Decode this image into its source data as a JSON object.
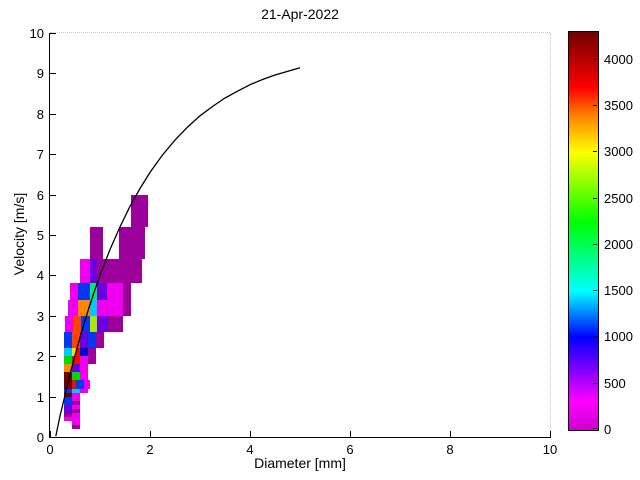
{
  "title": "21-Apr-2022",
  "axes": {
    "xlabel": "Diameter [mm]",
    "ylabel": "Velocity [m/s]",
    "xlim": [
      0,
      10
    ],
    "ylim": [
      0,
      10
    ],
    "xticks": [
      0,
      2,
      4,
      6,
      8,
      10
    ],
    "yticks": [
      0,
      1,
      2,
      3,
      4,
      5,
      6,
      7,
      8,
      9,
      10
    ]
  },
  "colorbar": {
    "min": 0,
    "max": 4300,
    "ticks": [
      0,
      500,
      1000,
      1500,
      2000,
      2500,
      3000,
      3500,
      4000
    ],
    "gradient_stops": [
      {
        "value": 0,
        "color": "#CC00CC"
      },
      {
        "value": 300,
        "color": "#FF00FF"
      },
      {
        "value": 1000,
        "color": "#0000FF"
      },
      {
        "value": 1500,
        "color": "#00FFFF"
      },
      {
        "value": 2250,
        "color": "#00FF00"
      },
      {
        "value": 3000,
        "color": "#FFFF00"
      },
      {
        "value": 3400,
        "color": "#FF8000"
      },
      {
        "value": 3700,
        "color": "#FF0000"
      },
      {
        "value": 4300,
        "color": "#700000"
      }
    ]
  },
  "chart_data": {
    "type": "heatmap",
    "title": "21-Apr-2022",
    "xlabel": "Diameter [mm]",
    "ylabel": "Velocity [m/s]",
    "xlim": [
      0,
      10
    ],
    "ylim": [
      0,
      10
    ],
    "grid": false,
    "legend": "colorbar 0-4300 counts",
    "cells": [
      {
        "d0": 1.625,
        "d1": 1.95,
        "v0": 5.2,
        "v1": 6.0,
        "count": 450,
        "color": "#9B009B"
      },
      {
        "d0": 0.8,
        "d1": 1.0625,
        "v0": 4.4,
        "v1": 5.2,
        "count": 480,
        "color": "#9B009B"
      },
      {
        "d0": 1.375,
        "d1": 1.9,
        "v0": 4.4,
        "v1": 5.2,
        "count": 440,
        "color": "#9B009B"
      },
      {
        "d0": 0.6,
        "d1": 0.8,
        "v0": 3.8,
        "v1": 4.4,
        "count": 220,
        "color": "#EE00EE"
      },
      {
        "d0": 0.8,
        "d1": 0.9375,
        "v0": 3.8,
        "v1": 4.4,
        "count": 700,
        "color": "#6A00E0"
      },
      {
        "d0": 0.9375,
        "d1": 1.34,
        "v0": 3.8,
        "v1": 4.4,
        "count": 450,
        "color": "#9B009B"
      },
      {
        "d0": 1.34,
        "d1": 1.84,
        "v0": 3.8,
        "v1": 4.4,
        "count": 430,
        "color": "#9B009B"
      },
      {
        "d0": 0.4,
        "d1": 0.5625,
        "v0": 3.4,
        "v1": 3.8,
        "count": 200,
        "color": "#EE00EE"
      },
      {
        "d0": 0.5625,
        "d1": 0.8,
        "v0": 3.4,
        "v1": 3.8,
        "count": 1050,
        "color": "#0837F0"
      },
      {
        "d0": 0.8,
        "d1": 0.9375,
        "v0": 3.4,
        "v1": 3.8,
        "count": 1900,
        "color": "#00E878"
      },
      {
        "d0": 0.9375,
        "d1": 1.14,
        "v0": 3.4,
        "v1": 3.8,
        "count": 680,
        "color": "#6A00E0"
      },
      {
        "d0": 1.14,
        "d1": 1.46,
        "v0": 3.4,
        "v1": 3.8,
        "count": 260,
        "color": "#EE00EE"
      },
      {
        "d0": 1.46,
        "d1": 1.625,
        "v0": 3.4,
        "v1": 3.8,
        "count": 430,
        "color": "#9B009B"
      },
      {
        "d0": 0.36,
        "d1": 0.5625,
        "v0": 3.0,
        "v1": 3.4,
        "count": 270,
        "color": "#EE00EE"
      },
      {
        "d0": 0.5625,
        "d1": 0.8,
        "v0": 3.0,
        "v1": 3.4,
        "count": 3250,
        "color": "#FF8800"
      },
      {
        "d0": 0.8,
        "d1": 0.9375,
        "v0": 3.0,
        "v1": 3.4,
        "count": 1500,
        "color": "#00C8F8"
      },
      {
        "d0": 0.9375,
        "d1": 1.14,
        "v0": 3.0,
        "v1": 3.4,
        "count": 320,
        "color": "#EE00EE"
      },
      {
        "d0": 1.14,
        "d1": 1.46,
        "v0": 3.0,
        "v1": 3.4,
        "count": 230,
        "color": "#EE00EE"
      },
      {
        "d0": 1.46,
        "d1": 1.625,
        "v0": 3.0,
        "v1": 3.4,
        "count": 410,
        "color": "#9B009B"
      },
      {
        "d0": 0.3,
        "d1": 0.46,
        "v0": 2.6,
        "v1": 3.0,
        "count": 260,
        "color": "#EE00EE"
      },
      {
        "d0": 0.46,
        "d1": 0.625,
        "v0": 2.6,
        "v1": 3.0,
        "count": 3450,
        "color": "#FF4400"
      },
      {
        "d0": 0.625,
        "d1": 0.8,
        "v0": 2.6,
        "v1": 3.0,
        "count": 1000,
        "color": "#0837F0"
      },
      {
        "d0": 0.8,
        "d1": 0.9375,
        "v0": 2.6,
        "v1": 3.0,
        "count": 2800,
        "color": "#A8E800"
      },
      {
        "d0": 0.9375,
        "d1": 1.16,
        "v0": 2.6,
        "v1": 3.0,
        "count": 620,
        "color": "#6A00E0"
      },
      {
        "d0": 1.16,
        "d1": 1.46,
        "v0": 2.6,
        "v1": 3.0,
        "count": 420,
        "color": "#9B009B"
      },
      {
        "d0": 0.28,
        "d1": 0.44,
        "v0": 2.2,
        "v1": 2.6,
        "count": 1100,
        "color": "#0837F0"
      },
      {
        "d0": 0.44,
        "d1": 0.6,
        "v0": 2.2,
        "v1": 2.6,
        "count": 3400,
        "color": "#FF4400"
      },
      {
        "d0": 0.6,
        "d1": 0.76,
        "v0": 2.2,
        "v1": 2.6,
        "count": 720,
        "color": "#6A00E0"
      },
      {
        "d0": 0.76,
        "d1": 0.92,
        "v0": 2.2,
        "v1": 2.6,
        "count": 1000,
        "color": "#0837F0"
      },
      {
        "d0": 0.92,
        "d1": 1.08,
        "v0": 2.2,
        "v1": 2.6,
        "count": 440,
        "color": "#9B009B"
      },
      {
        "d0": 0.28,
        "d1": 0.44,
        "v0": 2.0,
        "v1": 2.2,
        "count": 1550,
        "color": "#00C8F8"
      },
      {
        "d0": 0.44,
        "d1": 0.52,
        "v0": 2.0,
        "v1": 2.2,
        "count": 3000,
        "color": "#E8E800"
      },
      {
        "d0": 0.52,
        "d1": 0.6,
        "v0": 2.0,
        "v1": 2.2,
        "count": 3650,
        "color": "#E81000"
      },
      {
        "d0": 0.6,
        "d1": 0.76,
        "v0": 2.0,
        "v1": 2.2,
        "count": 900,
        "color": "#0000D0"
      },
      {
        "d0": 0.76,
        "d1": 0.92,
        "v0": 2.0,
        "v1": 2.2,
        "count": 450,
        "color": "#9B009B"
      },
      {
        "d0": 0.28,
        "d1": 0.44,
        "v0": 1.8,
        "v1": 2.0,
        "count": 2300,
        "color": "#00D800"
      },
      {
        "d0": 0.44,
        "d1": 0.6,
        "v0": 1.8,
        "v1": 2.0,
        "count": 3600,
        "color": "#E81000"
      },
      {
        "d0": 0.6,
        "d1": 0.76,
        "v0": 1.8,
        "v1": 2.0,
        "count": 300,
        "color": "#EE00EE"
      },
      {
        "d0": 0.76,
        "d1": 0.92,
        "v0": 1.8,
        "v1": 2.0,
        "count": 430,
        "color": "#9B009B"
      },
      {
        "d0": 0.28,
        "d1": 0.44,
        "v0": 1.6,
        "v1": 1.8,
        "count": 3250,
        "color": "#FF8800"
      },
      {
        "d0": 0.44,
        "d1": 0.6,
        "v0": 1.6,
        "v1": 1.8,
        "count": 700,
        "color": "#6A00E0"
      },
      {
        "d0": 0.6,
        "d1": 0.76,
        "v0": 1.6,
        "v1": 1.8,
        "count": 260,
        "color": "#EE00EE"
      },
      {
        "d0": 0.28,
        "d1": 0.44,
        "v0": 1.4,
        "v1": 1.6,
        "count": 4200,
        "color": "#700000"
      },
      {
        "d0": 0.44,
        "d1": 0.6,
        "v0": 1.4,
        "v1": 1.6,
        "count": 2300,
        "color": "#00D800"
      },
      {
        "d0": 0.6,
        "d1": 0.76,
        "v0": 1.4,
        "v1": 1.6,
        "count": 280,
        "color": "#EE00EE"
      },
      {
        "d0": 0.28,
        "d1": 0.44,
        "v0": 1.2,
        "v1": 1.4,
        "count": 4100,
        "color": "#700000"
      },
      {
        "d0": 0.44,
        "d1": 0.52,
        "v0": 1.2,
        "v1": 1.4,
        "count": 3600,
        "color": "#E81000"
      },
      {
        "d0": 0.52,
        "d1": 0.68,
        "v0": 1.2,
        "v1": 1.4,
        "count": 1000,
        "color": "#0837F0"
      },
      {
        "d0": 0.68,
        "d1": 0.8,
        "v0": 1.2,
        "v1": 1.4,
        "count": 300,
        "color": "#EE00EE"
      },
      {
        "d0": 0.28,
        "d1": 0.44,
        "v0": 1.1,
        "v1": 1.2,
        "count": 1050,
        "color": "#0837F0"
      },
      {
        "d0": 0.44,
        "d1": 0.6,
        "v0": 1.1,
        "v1": 1.2,
        "count": 1500,
        "color": "#00C8F8"
      },
      {
        "d0": 0.6,
        "d1": 0.76,
        "v0": 1.1,
        "v1": 1.2,
        "count": 250,
        "color": "#EE00EE"
      },
      {
        "d0": 0.28,
        "d1": 0.44,
        "v0": 1.0,
        "v1": 1.1,
        "count": 4000,
        "color": "#700000"
      },
      {
        "d0": 0.44,
        "d1": 0.6,
        "v0": 1.0,
        "v1": 1.1,
        "count": 350,
        "color": "#EE00EE"
      },
      {
        "d0": 0.28,
        "d1": 0.44,
        "v0": 0.9,
        "v1": 1.0,
        "count": 950,
        "color": "#0837F0"
      },
      {
        "d0": 0.44,
        "d1": 0.6,
        "v0": 0.9,
        "v1": 1.0,
        "count": 320,
        "color": "#EE00EE"
      },
      {
        "d0": 0.28,
        "d1": 0.44,
        "v0": 0.8,
        "v1": 0.9,
        "count": 900,
        "color": "#0837F0"
      },
      {
        "d0": 0.44,
        "d1": 0.6,
        "v0": 0.8,
        "v1": 0.9,
        "count": 500,
        "color": "#9B009B"
      },
      {
        "d0": 0.28,
        "d1": 0.44,
        "v0": 0.7,
        "v1": 0.8,
        "count": 700,
        "color": "#6A00E0"
      },
      {
        "d0": 0.44,
        "d1": 0.6,
        "v0": 0.7,
        "v1": 0.8,
        "count": 300,
        "color": "#EE00EE"
      },
      {
        "d0": 0.28,
        "d1": 0.44,
        "v0": 0.6,
        "v1": 0.7,
        "count": 650,
        "color": "#6A00E0"
      },
      {
        "d0": 0.44,
        "d1": 0.6,
        "v0": 0.6,
        "v1": 0.7,
        "count": 480,
        "color": "#9B009B"
      },
      {
        "d0": 0.28,
        "d1": 0.44,
        "v0": 0.5,
        "v1": 0.6,
        "count": 520,
        "color": "#9B009B"
      },
      {
        "d0": 0.44,
        "d1": 0.6,
        "v0": 0.5,
        "v1": 0.6,
        "count": 300,
        "color": "#EE00EE"
      },
      {
        "d0": 0.28,
        "d1": 0.6,
        "v0": 0.4,
        "v1": 0.5,
        "count": 280,
        "color": "#EE00EE"
      },
      {
        "d0": 0.44,
        "d1": 0.6,
        "v0": 0.3,
        "v1": 0.4,
        "count": 250,
        "color": "#EE00EE"
      },
      {
        "d0": 0.44,
        "d1": 0.6,
        "v0": 0.2,
        "v1": 0.3,
        "count": 430,
        "color": "#9B009B"
      }
    ],
    "curve": {
      "name": "terminal-velocity-curve",
      "color": "#000000",
      "points": [
        [
          0.115,
          0.02
        ],
        [
          0.2,
          0.52
        ],
        [
          0.3,
          1.03
        ],
        [
          0.4,
          1.55
        ],
        [
          0.5,
          2.02
        ],
        [
          0.6,
          2.46
        ],
        [
          0.7,
          2.88
        ],
        [
          0.8,
          3.28
        ],
        [
          0.9,
          3.65
        ],
        [
          1.0,
          4.0
        ],
        [
          1.2,
          4.64
        ],
        [
          1.4,
          5.2
        ],
        [
          1.6,
          5.71
        ],
        [
          1.8,
          6.15
        ],
        [
          2.0,
          6.55
        ],
        [
          2.25,
          6.98
        ],
        [
          2.5,
          7.35
        ],
        [
          2.75,
          7.67
        ],
        [
          3.0,
          7.95
        ],
        [
          3.25,
          8.18
        ],
        [
          3.5,
          8.39
        ],
        [
          3.75,
          8.56
        ],
        [
          4.0,
          8.72
        ],
        [
          4.25,
          8.85
        ],
        [
          4.5,
          8.96
        ],
        [
          4.75,
          9.05
        ],
        [
          5.0,
          9.14
        ]
      ]
    }
  }
}
